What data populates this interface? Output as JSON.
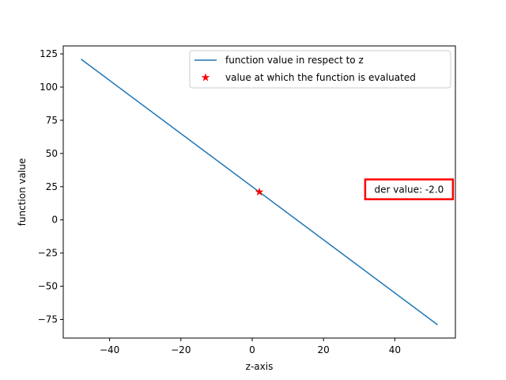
{
  "chart_data": {
    "type": "line",
    "title": "",
    "xlabel": "z-axis",
    "ylabel": "function value",
    "xlim": [
      -53,
      57
    ],
    "ylim": [
      -89,
      131
    ],
    "xticks": [
      -40,
      -20,
      0,
      20,
      40
    ],
    "yticks": [
      -75,
      -50,
      -25,
      0,
      25,
      50,
      75,
      100,
      125
    ],
    "grid": false,
    "legend_placement": "upper right",
    "series": [
      {
        "name": "function value in respect to z",
        "kind": "line",
        "color": "#1f77b4",
        "x": [
          -48,
          52
        ],
        "y": [
          121,
          -79
        ]
      },
      {
        "name": "value at which the function is evaluated",
        "kind": "marker",
        "marker": "star",
        "color": "#ff0000",
        "x": [
          2
        ],
        "y": [
          21
        ]
      }
    ],
    "annotations": [
      {
        "text": "der value: -2.0",
        "x": 44,
        "y": 23,
        "box_color": "#ff0000"
      }
    ]
  }
}
